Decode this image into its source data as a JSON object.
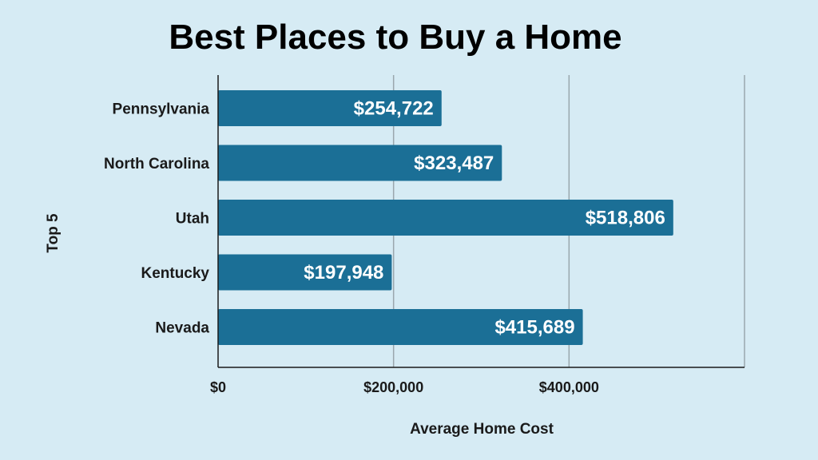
{
  "chart_data": {
    "type": "bar",
    "orientation": "horizontal",
    "title": "Best Places to Buy a Home",
    "xlabel": "Average Home Cost",
    "ylabel": "Top 5",
    "categories": [
      "Pennsylvania",
      "North Carolina",
      "Utah",
      "Kentucky",
      "Nevada"
    ],
    "values": [
      254722,
      323487,
      518806,
      197948,
      415689
    ],
    "data_labels": [
      "$254,722",
      "$323,487",
      "$518,806",
      "$197,948",
      "$415,689"
    ],
    "xlim": [
      0,
      600000
    ],
    "x_ticks": [
      0,
      200000,
      400000
    ],
    "x_tick_labels": [
      "$0",
      "$200,000",
      "$400,000"
    ],
    "grid": "vertical",
    "colors": {
      "background": "#d6ebf4",
      "bar": "#1b6f96",
      "data_label": "#ffffff",
      "grid": "#9aa7ad",
      "axis": "#1a1a1a"
    }
  }
}
